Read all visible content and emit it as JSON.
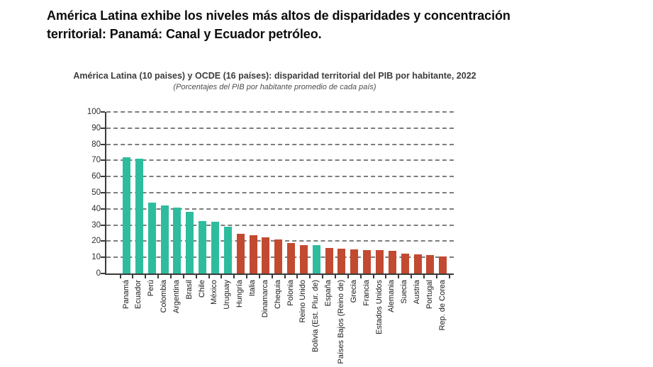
{
  "page": {
    "heading_lines": [
      "América Latina exhibe los niveles más altos de disparidades y concentración",
      "territorial: Panamá: Canal y Ecuador petróleo."
    ]
  },
  "chart_data": {
    "type": "bar",
    "title": "América Latina (10 paises) y OCDE (16 países): disparidad territorial del PIB por habitante, 2022",
    "subtitle": "(Porcentajes del PIB por habitante promedio de cada país)",
    "xlabel": "",
    "ylabel": "",
    "ylim": [
      0,
      100
    ],
    "yticks": [
      0,
      10,
      20,
      30,
      40,
      50,
      60,
      70,
      80,
      90,
      100
    ],
    "grid": "horizontal-dashed",
    "legend_position": "none",
    "groups": [
      {
        "name": "América Latina",
        "color": "#2dbd9e"
      },
      {
        "name": "OCDE",
        "color": "#c24a30"
      }
    ],
    "bars": [
      {
        "label": "Panamá",
        "value": 72,
        "group": "América Latina"
      },
      {
        "label": "Ecuador",
        "value": 71,
        "group": "América Latina"
      },
      {
        "label": "Perú",
        "value": 44,
        "group": "América Latina"
      },
      {
        "label": "Colombia",
        "value": 42,
        "group": "América Latina"
      },
      {
        "label": "Argentina",
        "value": 41,
        "group": "América Latina"
      },
      {
        "label": "Brasil",
        "value": 38,
        "group": "América Latina"
      },
      {
        "label": "Chile",
        "value": 32.5,
        "group": "América Latina"
      },
      {
        "label": "México",
        "value": 32,
        "group": "América Latina"
      },
      {
        "label": "Uruguay",
        "value": 29,
        "group": "América Latina"
      },
      {
        "label": "Hungría",
        "value": 24.5,
        "group": "OCDE"
      },
      {
        "label": "Italia",
        "value": 23.5,
        "group": "OCDE"
      },
      {
        "label": "Dinamarca",
        "value": 22.5,
        "group": "OCDE"
      },
      {
        "label": "Chequia",
        "value": 21,
        "group": "OCDE"
      },
      {
        "label": "Polonia",
        "value": 19,
        "group": "OCDE"
      },
      {
        "label": "Reino Unido",
        "value": 17.5,
        "group": "OCDE"
      },
      {
        "label": "Bolivia (Est. Plur. de)",
        "value": 17.5,
        "group": "América Latina"
      },
      {
        "label": "España",
        "value": 16,
        "group": "OCDE"
      },
      {
        "label": "Países Bajos (Reino de)",
        "value": 15.5,
        "group": "OCDE"
      },
      {
        "label": "Grecia",
        "value": 15,
        "group": "OCDE"
      },
      {
        "label": "Francia",
        "value": 14.5,
        "group": "OCDE"
      },
      {
        "label": "Estados Unidos",
        "value": 14.5,
        "group": "OCDE"
      },
      {
        "label": "Alemania",
        "value": 14,
        "group": "OCDE"
      },
      {
        "label": "Suecia",
        "value": 12.5,
        "group": "OCDE"
      },
      {
        "label": "Austria",
        "value": 12,
        "group": "OCDE"
      },
      {
        "label": "Portugal",
        "value": 11.5,
        "group": "OCDE"
      },
      {
        "label": "Rep. de Corea",
        "value": 10.5,
        "group": "OCDE"
      }
    ]
  },
  "colors": {
    "axis": "#3a3a3a",
    "grid": "#7d7d7d",
    "heading_text": "#0d0d0d",
    "title_text": "#3c3c3c",
    "subtitle_text": "#4c4c4c",
    "latam_bar": "#2dbd9e",
    "ocde_bar": "#c24a30"
  }
}
